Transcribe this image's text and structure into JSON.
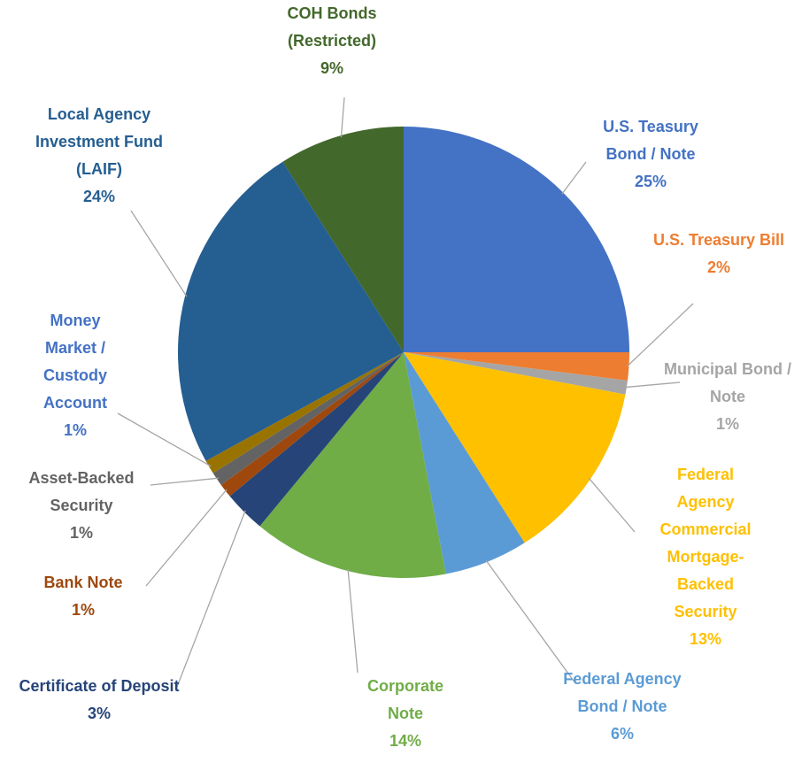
{
  "chart_data": {
    "type": "pie",
    "categories": [
      "U.S. Teasury Bond / Note",
      "U.S. Treasury Bill",
      "Municipal Bond / Note",
      "Federal Agency Commercial Mortgage-Backed Security",
      "Federal Agency Bond / Note",
      "Corporate Note",
      "Certificate of Deposit",
      "Bank Note",
      "Asset-Backed Security",
      "Money Market / Custody Account",
      "Local Agency Investment Fund (LAIF)",
      "COH Bonds (Restricted)"
    ],
    "values": [
      25,
      2,
      1,
      13,
      6,
      14,
      3,
      1,
      1,
      1,
      24,
      9
    ],
    "value_labels": [
      "25%",
      "2%",
      "1%",
      "13%",
      "6%",
      "14%",
      "3%",
      "1%",
      "1%",
      "1%",
      "24%",
      "9%"
    ],
    "colors": [
      "#4472c4",
      "#ed7d31",
      "#a5a5a5",
      "#ffc000",
      "#5b9bd5",
      "#70ad47",
      "#264478",
      "#9e480e",
      "#636363",
      "#997300",
      "#255e91",
      "#43682b"
    ],
    "label_colors": [
      "#4472c4",
      "#ed7d31",
      "#a5a5a5",
      "#ffc000",
      "#5b9bd5",
      "#70ad47",
      "#264478",
      "#9e480e",
      "#636363",
      "#4472c4",
      "#255e91",
      "#43682b"
    ]
  }
}
